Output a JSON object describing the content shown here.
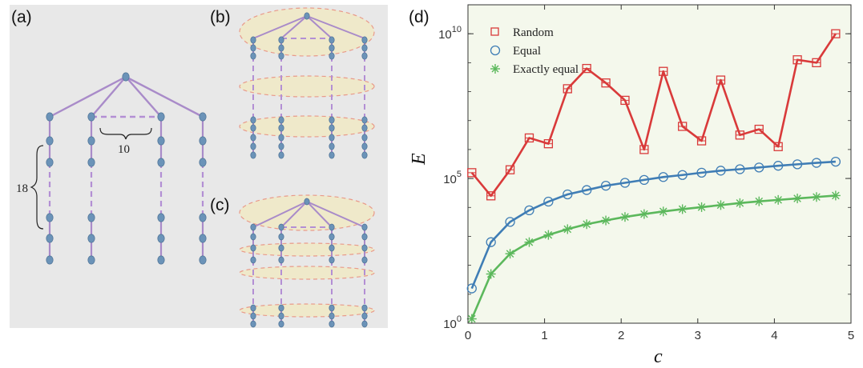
{
  "panels": {
    "a": "(a)",
    "b": "(b)",
    "c": "(c)",
    "d": "(d)"
  },
  "diagram": {
    "brace_small_label": "10",
    "brace_large_label": "18",
    "colors": {
      "background": "#e8e8e8",
      "edge": "#a98bc9",
      "dashed_edge": "#b38fd4",
      "node": "#6b93b8",
      "ellipse_fill": "#f0e9c4",
      "ellipse_stroke": "#e99a8a"
    }
  },
  "chart_data": {
    "type": "line",
    "xlabel": "c",
    "ylabel": "E",
    "xlim": [
      0,
      5
    ],
    "ylim_log10": [
      0,
      11
    ],
    "y_scale": "log",
    "x_ticks": [
      "0",
      "1",
      "2",
      "3",
      "4",
      "5"
    ],
    "y_ticks": [
      {
        "base": "10",
        "exp": "0",
        "log10": 0
      },
      {
        "base": "10",
        "exp": "5",
        "log10": 5
      },
      {
        "base": "10",
        "exp": "10",
        "log10": 10
      }
    ],
    "plot_background": "#f4f8ec",
    "legend_position": "top-left",
    "x": [
      0.05,
      0.3,
      0.55,
      0.8,
      1.05,
      1.3,
      1.55,
      1.8,
      2.05,
      2.3,
      2.55,
      2.8,
      3.05,
      3.3,
      3.55,
      3.8,
      4.05,
      4.3,
      4.55,
      4.8
    ],
    "series": [
      {
        "name": "Random",
        "marker": "square",
        "color": "#d93a3a",
        "log10_values": [
          5.2,
          4.4,
          5.3,
          6.4,
          6.2,
          8.1,
          8.8,
          8.3,
          7.7,
          6.0,
          8.7,
          6.8,
          6.3,
          8.4,
          6.5,
          6.7,
          6.1,
          9.1,
          9.0,
          10.0
        ]
      },
      {
        "name": "Equal",
        "marker": "circle",
        "color": "#3f7db5",
        "log10_values": [
          1.2,
          2.8,
          3.5,
          3.9,
          4.2,
          4.45,
          4.6,
          4.75,
          4.85,
          4.95,
          5.05,
          5.12,
          5.2,
          5.27,
          5.32,
          5.38,
          5.44,
          5.49,
          5.54,
          5.58
        ]
      },
      {
        "name": "Exactly equal",
        "marker": "asterisk",
        "color": "#5cb85c",
        "log10_values": [
          0.15,
          1.7,
          2.4,
          2.8,
          3.05,
          3.25,
          3.42,
          3.55,
          3.67,
          3.77,
          3.86,
          3.94,
          4.01,
          4.08,
          4.15,
          4.21,
          4.26,
          4.31,
          4.36,
          4.41
        ]
      }
    ]
  }
}
